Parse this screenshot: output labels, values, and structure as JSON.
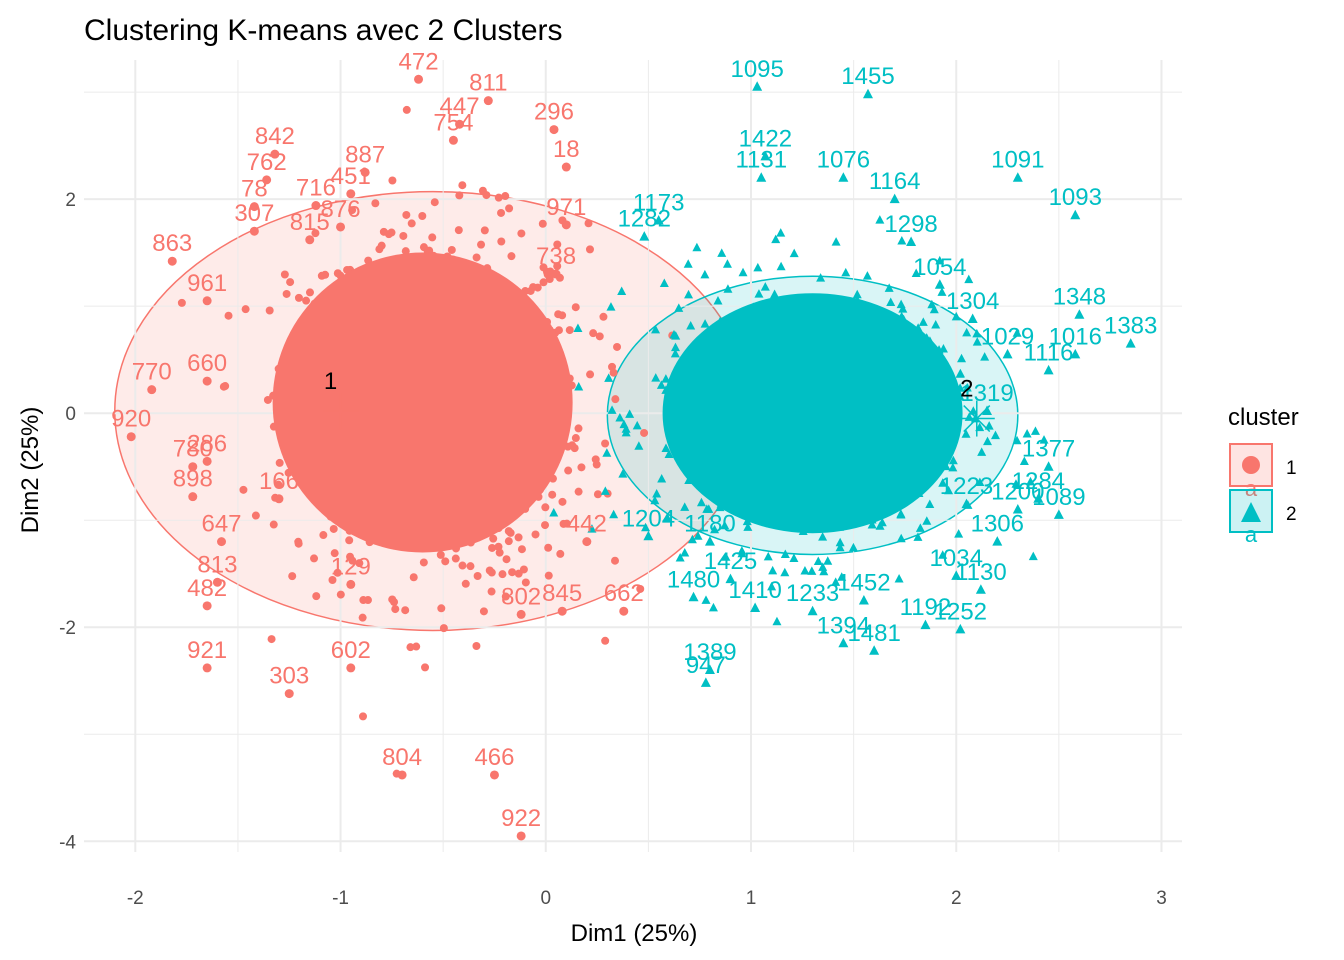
{
  "colors": {
    "cluster1": "#F8766D",
    "cluster2": "#00BFC4",
    "centroid": "#000000",
    "grid": "#EBEBEB"
  },
  "chart_data": {
    "type": "scatter",
    "title": "Clustering K-means avec 2 Clusters",
    "xlabel": "Dim1 (25%)",
    "ylabel": "Dim2 (25%)",
    "xlim": [
      -2.25,
      3.1
    ],
    "ylim": [
      -4.1,
      3.3
    ],
    "xticks": [
      -2,
      -1,
      0,
      1,
      2,
      3
    ],
    "yticks": [
      -4,
      -2,
      0,
      2
    ],
    "grid": true,
    "legend": {
      "title": "cluster",
      "placement": "right",
      "entries": [
        "1",
        "2"
      ]
    },
    "centroids": [
      {
        "cluster": "1",
        "label": "1",
        "x": -1.0,
        "y": 0.02
      },
      {
        "cluster": "2",
        "label": "2",
        "x": 2.1,
        "y": -0.05
      }
    ],
    "ellipses": [
      {
        "cluster": "1",
        "cx": -0.55,
        "cy": 0.02,
        "rx": 1.55,
        "ry": 2.05
      },
      {
        "cluster": "2",
        "cx": 1.3,
        "cy": -0.02,
        "rx": 1.0,
        "ry": 1.3
      }
    ],
    "series": [
      {
        "name": "1",
        "points": [
          {
            "label": "472",
            "x": -0.62,
            "y": 3.12
          },
          {
            "label": "811",
            "x": -0.28,
            "y": 2.92
          },
          {
            "label": "296",
            "x": 0.04,
            "y": 2.65
          },
          {
            "label": "842",
            "x": -1.32,
            "y": 2.42
          },
          {
            "label": "762",
            "x": -1.36,
            "y": 2.18
          },
          {
            "label": "78",
            "x": -1.42,
            "y": 1.93
          },
          {
            "label": "716",
            "x": -1.12,
            "y": 1.94
          },
          {
            "label": "876",
            "x": -1.0,
            "y": 1.74
          },
          {
            "label": "887",
            "x": -0.88,
            "y": 2.25
          },
          {
            "label": "18",
            "x": 0.1,
            "y": 2.3
          },
          {
            "label": "971",
            "x": 0.1,
            "y": 1.76
          },
          {
            "label": "863",
            "x": -1.82,
            "y": 1.42
          },
          {
            "label": "738",
            "x": 0.05,
            "y": 1.3
          },
          {
            "label": "770",
            "x": -1.92,
            "y": 0.22
          },
          {
            "label": "920",
            "x": -2.02,
            "y": -0.22
          },
          {
            "label": "780",
            "x": -1.72,
            "y": -0.5
          },
          {
            "label": "898",
            "x": -1.72,
            "y": -0.78
          },
          {
            "label": "647",
            "x": -1.58,
            "y": -1.2
          },
          {
            "label": "813",
            "x": -1.6,
            "y": -1.58
          },
          {
            "label": "482",
            "x": -1.65,
            "y": -1.8
          },
          {
            "label": "921",
            "x": -1.65,
            "y": -2.38
          },
          {
            "label": "303",
            "x": -1.25,
            "y": -2.62
          },
          {
            "label": "602",
            "x": -0.95,
            "y": -2.38
          },
          {
            "label": "662",
            "x": 0.38,
            "y": -1.85
          },
          {
            "label": "845",
            "x": 0.08,
            "y": -1.85
          },
          {
            "label": "802",
            "x": -0.12,
            "y": -1.88
          },
          {
            "label": "804",
            "x": -0.7,
            "y": -3.38
          },
          {
            "label": "466",
            "x": -0.25,
            "y": -3.38
          },
          {
            "label": "922",
            "x": -0.12,
            "y": -3.95
          },
          {
            "label": "442",
            "x": 0.2,
            "y": -1.2
          },
          {
            "label": "451",
            "x": -0.95,
            "y": 2.05
          },
          {
            "label": "447",
            "x": -0.42,
            "y": 2.7
          },
          {
            "label": "307",
            "x": -1.42,
            "y": 1.7
          },
          {
            "label": "815",
            "x": -1.15,
            "y": 1.62
          },
          {
            "label": "754",
            "x": -0.45,
            "y": 2.55
          },
          {
            "label": "961",
            "x": -1.65,
            "y": 1.05
          },
          {
            "label": "660",
            "x": -1.65,
            "y": 0.3
          },
          {
            "label": "286",
            "x": -1.65,
            "y": -0.45
          },
          {
            "label": "166",
            "x": -1.3,
            "y": -0.8
          },
          {
            "label": "129",
            "x": -0.95,
            "y": -1.6
          }
        ]
      },
      {
        "name": "2",
        "points": [
          {
            "label": "1095",
            "x": 1.03,
            "y": 3.05
          },
          {
            "label": "1455",
            "x": 1.57,
            "y": 2.98
          },
          {
            "label": "1091",
            "x": 2.3,
            "y": 2.2
          },
          {
            "label": "1093",
            "x": 2.58,
            "y": 1.85
          },
          {
            "label": "1348",
            "x": 2.6,
            "y": 0.92
          },
          {
            "label": "1383",
            "x": 2.85,
            "y": 0.65
          },
          {
            "label": "1016",
            "x": 2.58,
            "y": 0.55
          },
          {
            "label": "1422",
            "x": 1.07,
            "y": 2.4
          },
          {
            "label": "1076",
            "x": 1.45,
            "y": 2.2
          },
          {
            "label": "1173",
            "x": 0.55,
            "y": 1.8
          },
          {
            "label": "1298",
            "x": 1.78,
            "y": 1.6
          },
          {
            "label": "1304",
            "x": 2.08,
            "y": 0.88
          },
          {
            "label": "1116",
            "x": 2.45,
            "y": 0.4
          },
          {
            "label": "1377",
            "x": 2.45,
            "y": -0.5
          },
          {
            "label": "1089",
            "x": 2.5,
            "y": -0.95
          },
          {
            "label": "1200",
            "x": 2.3,
            "y": -0.9
          },
          {
            "label": "1480",
            "x": 0.72,
            "y": -1.72
          },
          {
            "label": "1425",
            "x": 0.9,
            "y": -1.55
          },
          {
            "label": "1410",
            "x": 1.02,
            "y": -1.82
          },
          {
            "label": "1389",
            "x": 0.8,
            "y": -2.4
          },
          {
            "label": "947",
            "x": 0.78,
            "y": -2.52
          },
          {
            "label": "1394",
            "x": 1.45,
            "y": -2.15
          },
          {
            "label": "1481",
            "x": 1.6,
            "y": -2.22
          },
          {
            "label": "1192",
            "x": 1.85,
            "y": -1.98
          },
          {
            "label": "1252",
            "x": 2.02,
            "y": -2.02
          },
          {
            "label": "1130",
            "x": 2.12,
            "y": -1.65
          },
          {
            "label": "1034",
            "x": 2.0,
            "y": -1.52
          },
          {
            "label": "1233",
            "x": 1.3,
            "y": -1.85
          },
          {
            "label": "1452",
            "x": 1.55,
            "y": -1.75
          },
          {
            "label": "1204",
            "x": 0.5,
            "y": -1.15
          },
          {
            "label": "1319",
            "x": 2.15,
            "y": 0.02
          },
          {
            "label": "1284",
            "x": 2.4,
            "y": -0.8
          },
          {
            "label": "1131",
            "x": 1.05,
            "y": 2.2
          },
          {
            "label": "1164",
            "x": 1.7,
            "y": 2.0
          },
          {
            "label": "1282",
            "x": 0.48,
            "y": 1.65
          },
          {
            "label": "1054",
            "x": 1.92,
            "y": 1.2
          },
          {
            "label": "1223",
            "x": 2.05,
            "y": -0.85
          },
          {
            "label": "1180",
            "x": 0.8,
            "y": -1.2
          },
          {
            "label": "1306",
            "x": 2.2,
            "y": -1.2
          },
          {
            "label": "1029",
            "x": 2.25,
            "y": 0.55
          }
        ]
      }
    ]
  }
}
